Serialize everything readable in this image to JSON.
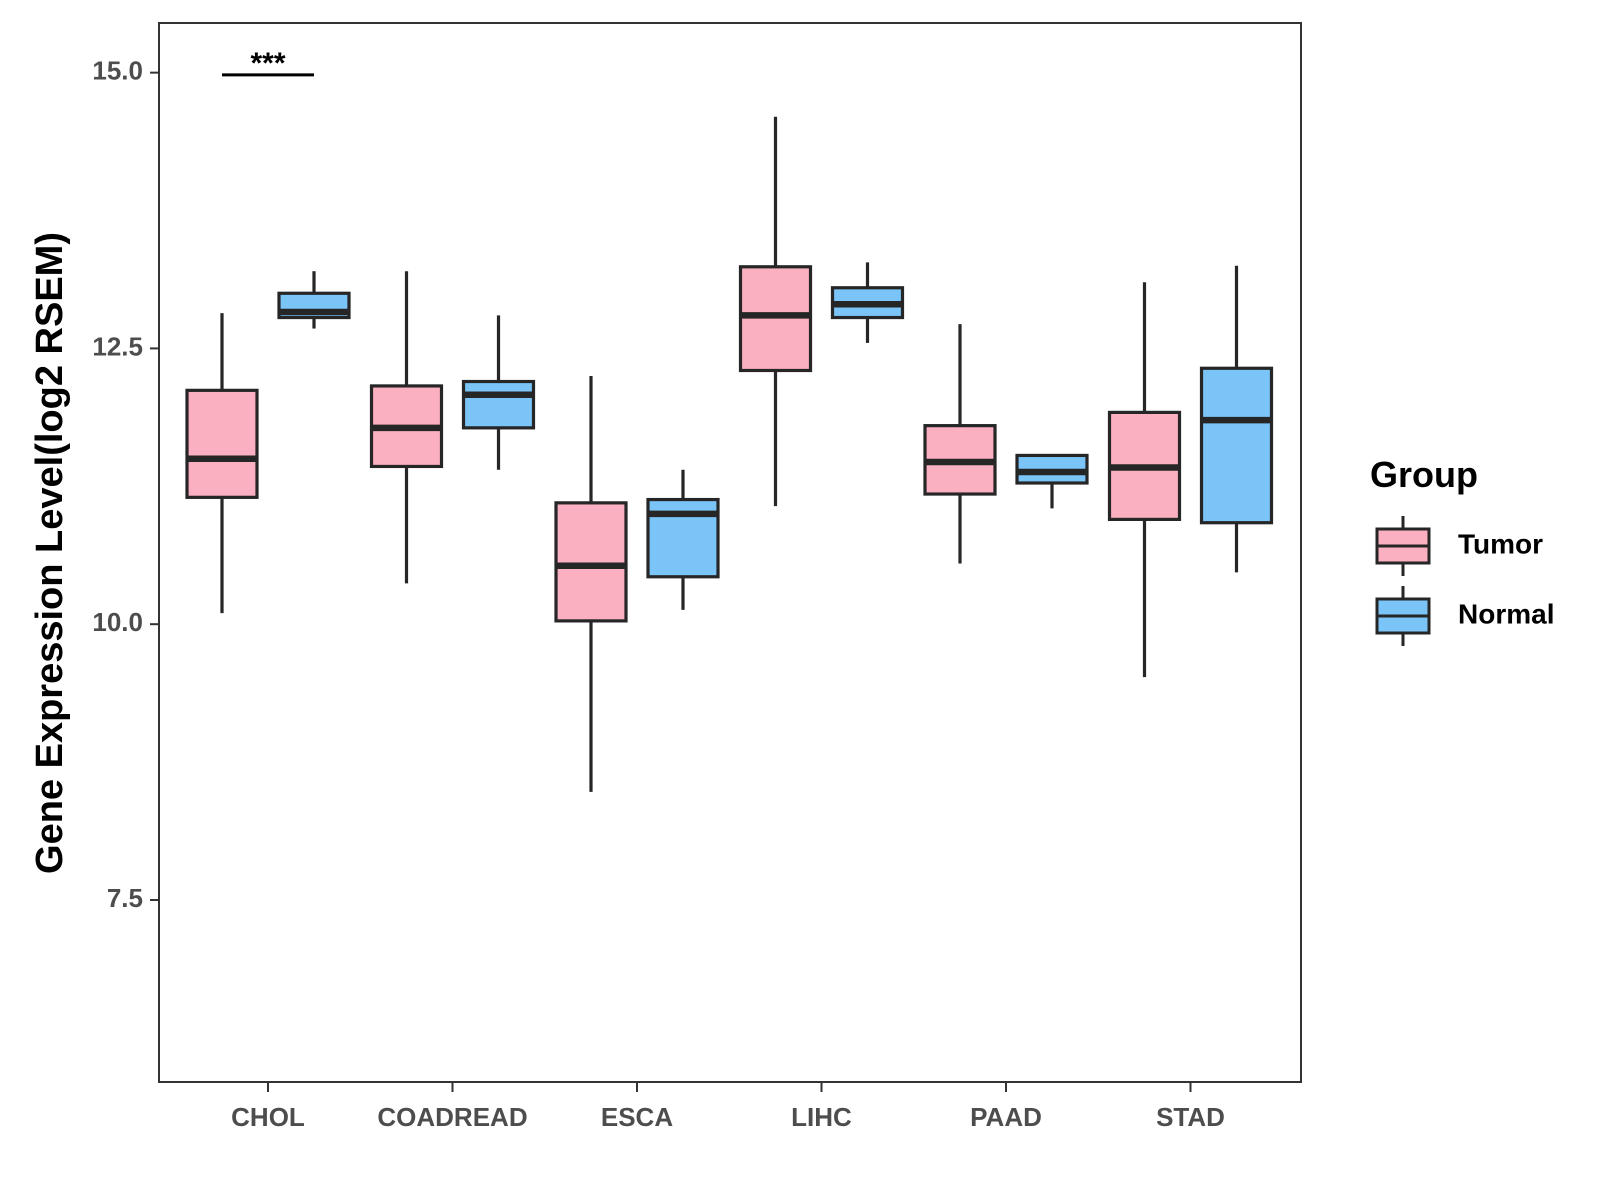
{
  "chart_data": {
    "type": "boxplot",
    "title": "",
    "xlabel": "",
    "ylabel": "Gene Expression Level(log2 RSEM)",
    "ylim": [
      5.85,
      15.45
    ],
    "yticks": [
      7.5,
      10.0,
      12.5,
      15.0
    ],
    "ytick_labels": [
      "7.5",
      "10.0",
      "12.5",
      "15.0"
    ],
    "categories": [
      "CHOL",
      "COADREAD",
      "ESCA",
      "LIHC",
      "PAAD",
      "STAD"
    ],
    "legend": {
      "title": "Group",
      "position": "right"
    },
    "series": [
      {
        "name": "Tumor",
        "color": "#FBB0C1",
        "boxes": [
          {
            "whisker_low": 10.1,
            "q1": 11.15,
            "median": 11.5,
            "q3": 12.12,
            "whisker_high": 12.82
          },
          {
            "whisker_low": 10.37,
            "q1": 11.43,
            "median": 11.78,
            "q3": 12.16,
            "whisker_high": 13.2
          },
          {
            "whisker_low": 8.48,
            "q1": 10.03,
            "median": 10.53,
            "q3": 11.1,
            "whisker_high": 12.25
          },
          {
            "whisker_low": 11.07,
            "q1": 12.3,
            "median": 12.8,
            "q3": 13.24,
            "whisker_high": 14.6
          },
          {
            "whisker_low": 10.55,
            "q1": 11.18,
            "median": 11.47,
            "q3": 11.8,
            "whisker_high": 12.72
          },
          {
            "whisker_low": 9.52,
            "q1": 10.95,
            "median": 11.42,
            "q3": 11.92,
            "whisker_high": 13.1
          }
        ]
      },
      {
        "name": "Normal",
        "color": "#7AC4F8",
        "boxes": [
          {
            "whisker_low": 12.68,
            "q1": 12.78,
            "median": 12.83,
            "q3": 13.0,
            "whisker_high": 13.2
          },
          {
            "whisker_low": 11.4,
            "q1": 11.78,
            "median": 12.08,
            "q3": 12.2,
            "whisker_high": 12.8
          },
          {
            "whisker_low": 10.13,
            "q1": 10.43,
            "median": 11.0,
            "q3": 11.13,
            "whisker_high": 11.4
          },
          {
            "whisker_low": 12.55,
            "q1": 12.78,
            "median": 12.9,
            "q3": 13.05,
            "whisker_high": 13.28
          },
          {
            "whisker_low": 11.05,
            "q1": 11.28,
            "median": 11.38,
            "q3": 11.53,
            "whisker_high": 11.53
          },
          {
            "whisker_low": 10.47,
            "q1": 10.92,
            "median": 11.85,
            "q3": 12.32,
            "whisker_high": 13.25
          }
        ]
      }
    ],
    "annotations": [
      {
        "category": "CHOL",
        "text": "***",
        "y": 14.98
      }
    ]
  }
}
